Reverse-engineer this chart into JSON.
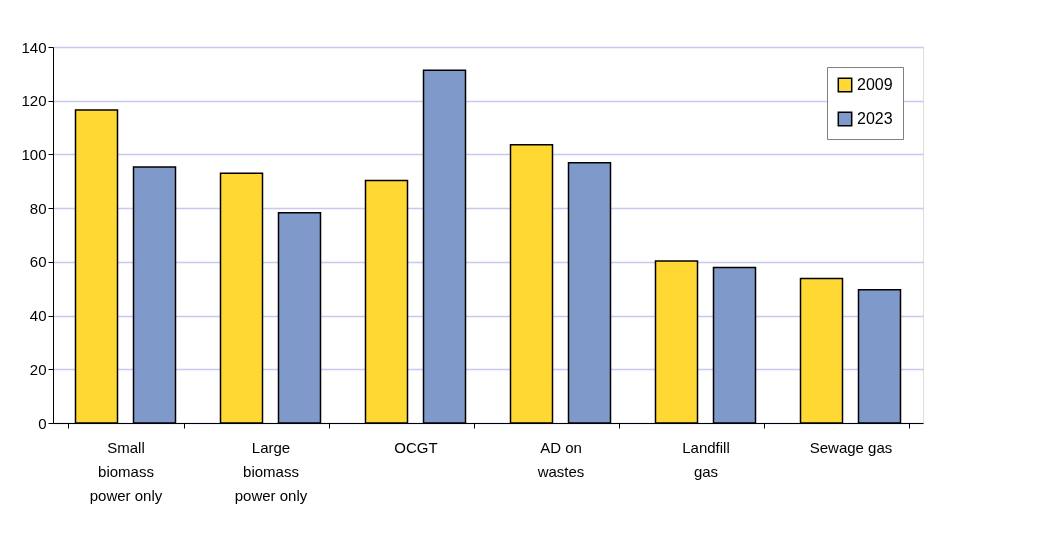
{
  "chart_data": {
    "type": "bar",
    "categories": [
      "Small biomass power only",
      "Large biomass power only",
      "OCGT",
      "AD on wastes",
      "Landfill gas",
      "Sewage gas"
    ],
    "series": [
      {
        "name": "2009",
        "color": "#ffd833",
        "values": [
          116.5,
          93,
          90.3,
          103.6,
          60.3,
          53.8
        ]
      },
      {
        "name": "2023",
        "color": "#7f9aca",
        "values": [
          95.3,
          78.3,
          131.3,
          96.9,
          57.9,
          49.6
        ]
      }
    ],
    "ylim": [
      0,
      140
    ],
    "yticks": [
      0,
      20,
      40,
      60,
      80,
      100,
      120,
      140
    ],
    "grid": "y",
    "legend": "top right"
  }
}
